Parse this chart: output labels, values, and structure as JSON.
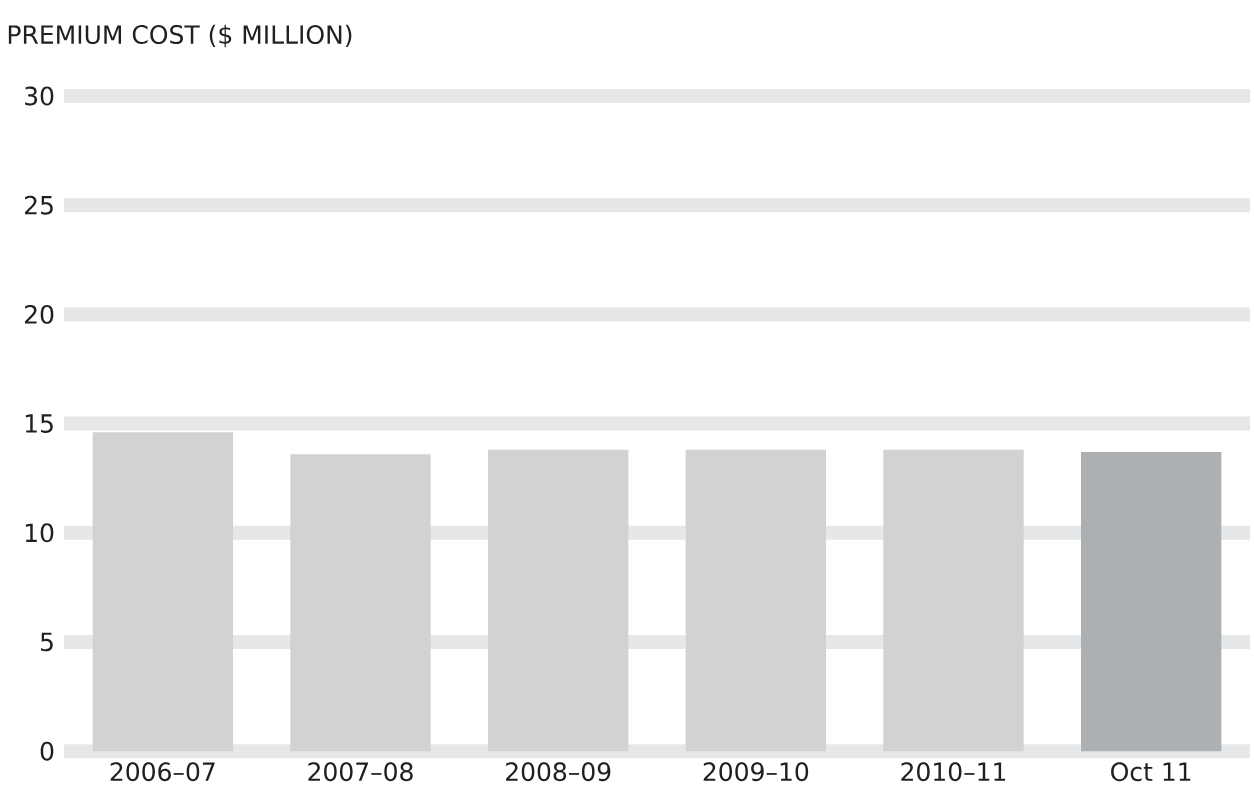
{
  "chart_data": {
    "type": "bar",
    "title": "PREMIUM COST ($ MILLION)",
    "categories": [
      "2006–07",
      "2007–08",
      "2008–09",
      "2009–10",
      "2010–11",
      "Oct 11"
    ],
    "values": [
      14.6,
      13.6,
      13.8,
      13.8,
      13.8,
      13.7
    ],
    "colors": [
      "#d1d2d4",
      "#d1d2d4",
      "#d1d2d4",
      "#d1d2d4",
      "#d1d2d4",
      "#adb0b3"
    ],
    "ylim": [
      0,
      30
    ],
    "yticks": [
      0,
      5,
      10,
      15,
      20,
      25,
      30
    ],
    "grid": "y"
  }
}
